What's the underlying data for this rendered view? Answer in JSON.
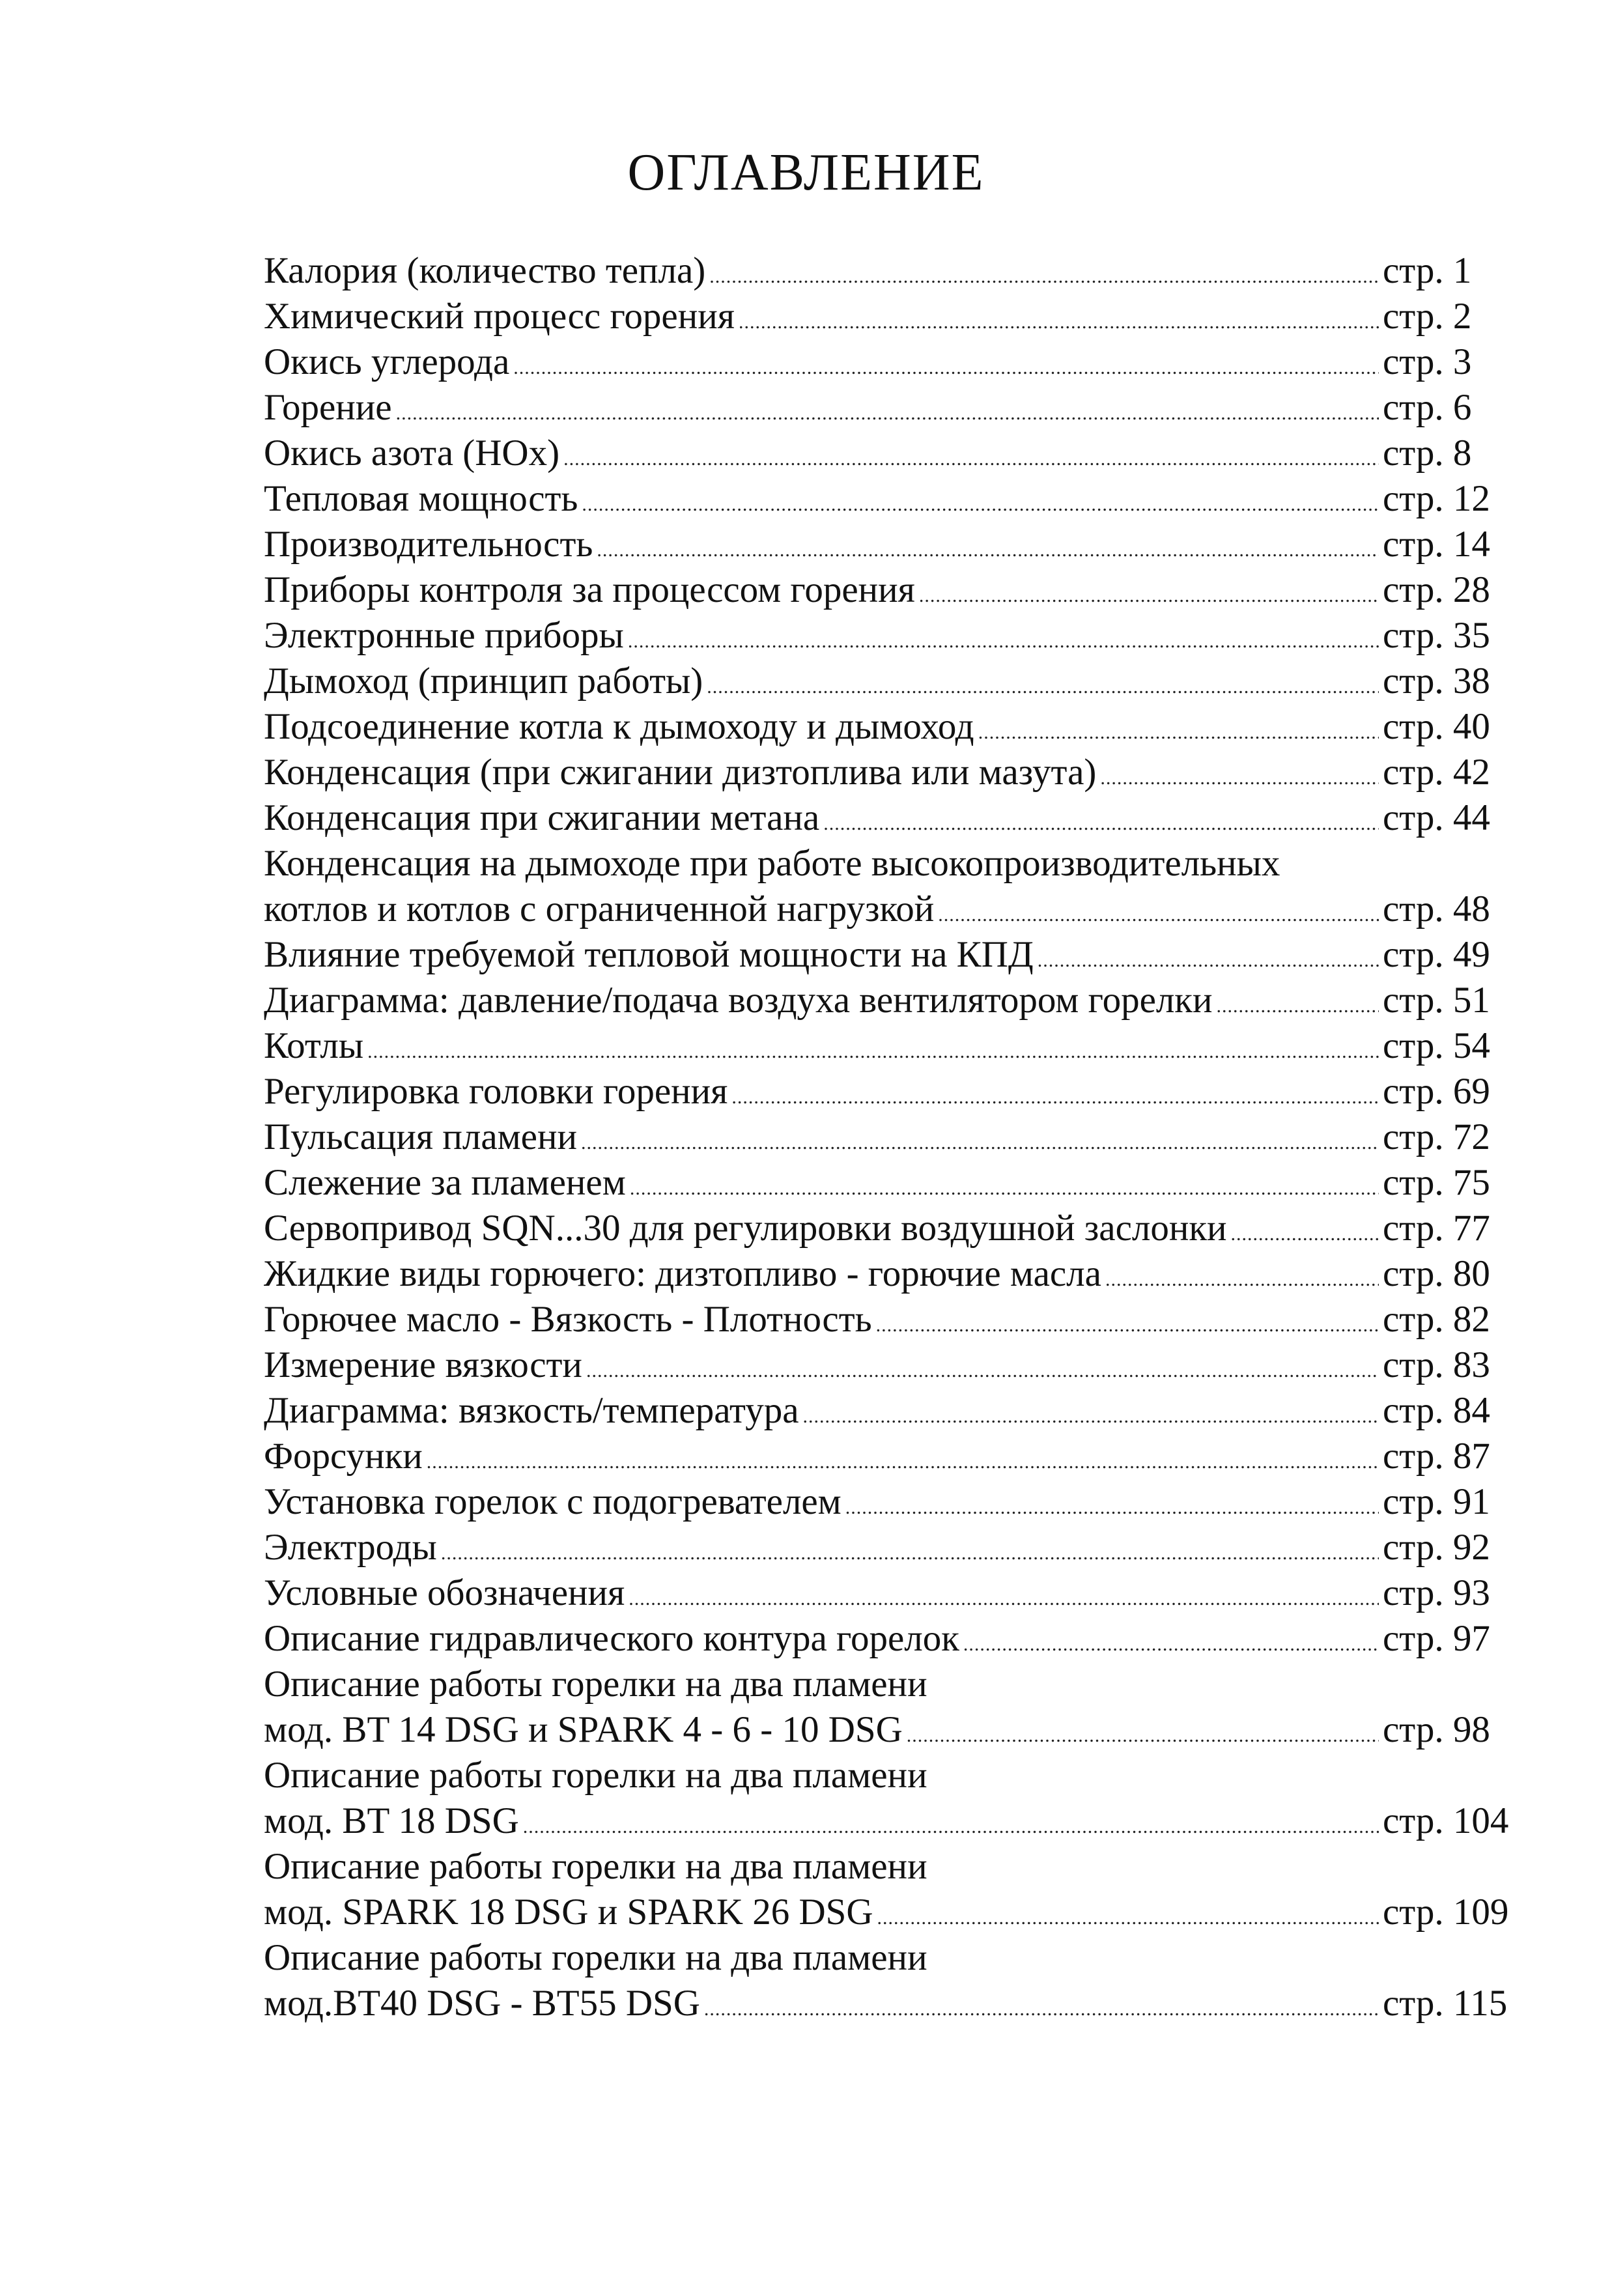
{
  "title": "ОГЛАВЛЕНИЕ",
  "entries": [
    {
      "lines": [
        "Калория (количество тепла)"
      ],
      "page": "стр. 1"
    },
    {
      "lines": [
        "Химический процесс горения"
      ],
      "page": "стр. 2"
    },
    {
      "lines": [
        "Окись углерода"
      ],
      "page": "стр. 3"
    },
    {
      "lines": [
        "Горение"
      ],
      "page": "стр. 6"
    },
    {
      "lines": [
        "Окись азота (НОх)"
      ],
      "page": "стр. 8"
    },
    {
      "lines": [
        "Тепловая мощность"
      ],
      "page": "стр. 12"
    },
    {
      "lines": [
        "Производительность"
      ],
      "page": "стр. 14"
    },
    {
      "lines": [
        "Приборы контроля за процессом горения"
      ],
      "page": "стр. 28"
    },
    {
      "lines": [
        "Электронные приборы"
      ],
      "page": "стр. 35"
    },
    {
      "lines": [
        "Дымоход (принцип работы)"
      ],
      "page": "стр. 38"
    },
    {
      "lines": [
        "Подсоединение котла к дымоходу и дымоход"
      ],
      "page": "стр. 40"
    },
    {
      "lines": [
        "Конденсация (при сжигании дизтоплива или мазута)"
      ],
      "page": "стр. 42"
    },
    {
      "lines": [
        "Конденсация при сжигании метана"
      ],
      "page": "стр. 44"
    },
    {
      "lines": [
        "Конденсация на дымоходе при работе высокопроизводительных",
        "котлов и котлов с ограниченной нагрузкой"
      ],
      "page": "стр. 48"
    },
    {
      "lines": [
        "Влияние требуемой тепловой мощности на КПД"
      ],
      "page": "стр. 49"
    },
    {
      "lines": [
        "Диаграмма: давление/подача воздуха вентилятором горелки"
      ],
      "page": "стр. 51"
    },
    {
      "lines": [
        "Котлы"
      ],
      "page": "стр. 54"
    },
    {
      "lines": [
        "Регулировка головки горения"
      ],
      "page": "стр. 69"
    },
    {
      "lines": [
        "Пульсация пламени"
      ],
      "page": "стр. 72"
    },
    {
      "lines": [
        "Слежение за пламенем"
      ],
      "page": "стр. 75"
    },
    {
      "lines": [
        "Сервопривод SQN...30 для регулировки воздушной заслонки"
      ],
      "page": "стр. 77"
    },
    {
      "lines": [
        "Жидкие виды горючего: дизтопливо - горючие масла"
      ],
      "page": "стр. 80"
    },
    {
      "lines": [
        "Горючее масло - Вязкость - Плотность"
      ],
      "page": "стр. 82"
    },
    {
      "lines": [
        "Измерение вязкости"
      ],
      "page": "стр. 83"
    },
    {
      "lines": [
        "Диаграмма: вязкость/температура"
      ],
      "page": "стр. 84"
    },
    {
      "lines": [
        "Форсунки"
      ],
      "page": "стр. 87"
    },
    {
      "lines": [
        "Установка горелок с подогревателем"
      ],
      "page": "стр. 91"
    },
    {
      "lines": [
        "Электроды"
      ],
      "page": "стр. 92"
    },
    {
      "lines": [
        "Условные обозначения"
      ],
      "page": "стр. 93"
    },
    {
      "lines": [
        "Описание гидравлического контура горелок"
      ],
      "page": "стр. 97"
    },
    {
      "lines": [
        "Описание работы горелки на два пламени",
        "мод. BT 14 DSG и SPARK 4 - 6 - 10 DSG"
      ],
      "page": "стр. 98"
    },
    {
      "lines": [
        "Описание работы горелки на два пламени",
        "мод. BT 18 DSG"
      ],
      "page": "стр. 104"
    },
    {
      "lines": [
        "Описание работы горелки на два пламени",
        "мод. SPARK 18 DSG и SPARK 26  DSG"
      ],
      "page": "стр. 109"
    },
    {
      "lines": [
        "Описание работы горелки на два пламени",
        "мод.BT40 DSG - BT55 DSG"
      ],
      "page": "стр. 115"
    }
  ]
}
